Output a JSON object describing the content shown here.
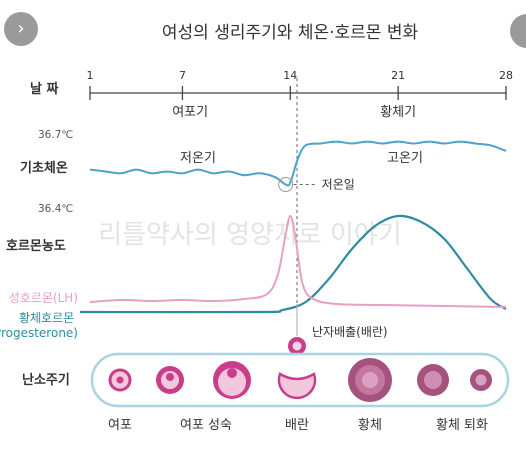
{
  "chart_data": {
    "type": "line",
    "title": "여성의 생리주기와 체온·호르몬 변화",
    "watermark": "리틀약사의 영양지로 이야기",
    "day_label": "날 짜",
    "day_ticks": [
      1,
      7,
      14,
      21,
      28
    ],
    "phases": [
      {
        "name": "여포기",
        "from": 1,
        "to": 14
      },
      {
        "name": "황체기",
        "from": 14,
        "to": 28
      }
    ],
    "temperature": {
      "row_label": "기초체온",
      "axis_max_label": "36.7℃",
      "axis_min_label": "36.4℃",
      "ylim": [
        36.4,
        36.7
      ],
      "low_label": "저온기",
      "high_label": "고온기",
      "low_point_label": "저온일",
      "color": "#4aa3c8",
      "points": [
        [
          1,
          36.52
        ],
        [
          2,
          36.51
        ],
        [
          3,
          36.5
        ],
        [
          4,
          36.52
        ],
        [
          5,
          36.5
        ],
        [
          6,
          36.51
        ],
        [
          7,
          36.5
        ],
        [
          8,
          36.52
        ],
        [
          9,
          36.5
        ],
        [
          10,
          36.51
        ],
        [
          11,
          36.49
        ],
        [
          12,
          36.5
        ],
        [
          13,
          36.48
        ],
        [
          13.7,
          36.44
        ],
        [
          14,
          36.45
        ],
        [
          14.5,
          36.58
        ],
        [
          15,
          36.65
        ],
        [
          16,
          36.66
        ],
        [
          17,
          36.67
        ],
        [
          18,
          36.66
        ],
        [
          19,
          36.67
        ],
        [
          20,
          36.66
        ],
        [
          21,
          36.67
        ],
        [
          22,
          36.66
        ],
        [
          23,
          36.67
        ],
        [
          24,
          36.66
        ],
        [
          25,
          36.67
        ],
        [
          26,
          36.66
        ],
        [
          27,
          36.65
        ],
        [
          28,
          36.62
        ]
      ]
    },
    "hormones": {
      "row_label": "호르몬농도",
      "series": [
        {
          "name": "성호르몬(LH)",
          "color": "#e6a0c4",
          "points": [
            [
              1,
              0.12
            ],
            [
              3,
              0.14
            ],
            [
              5,
              0.13
            ],
            [
              7,
              0.14
            ],
            [
              9,
              0.13
            ],
            [
              11,
              0.15
            ],
            [
              12.5,
              0.2
            ],
            [
              13.2,
              0.4
            ],
            [
              13.7,
              0.8
            ],
            [
              14,
              0.98
            ],
            [
              14.3,
              0.8
            ],
            [
              14.8,
              0.3
            ],
            [
              15.5,
              0.15
            ],
            [
              17,
              0.1
            ],
            [
              20,
              0.09
            ],
            [
              24,
              0.08
            ],
            [
              28,
              0.07
            ]
          ]
        },
        {
          "name": "황체호르몬\n(Progesterone)",
          "color": "#2d8c9e",
          "points": [
            [
              1,
              0.02
            ],
            [
              12,
              0.02
            ],
            [
              13.5,
              0.04
            ],
            [
              15,
              0.12
            ],
            [
              16.5,
              0.35
            ],
            [
              18,
              0.65
            ],
            [
              19.5,
              0.88
            ],
            [
              21,
              0.98
            ],
            [
              22.5,
              0.92
            ],
            [
              24,
              0.75
            ],
            [
              25.5,
              0.45
            ],
            [
              27,
              0.15
            ],
            [
              28,
              0.05
            ]
          ]
        }
      ]
    },
    "ovulation_label": "난자배출(배란)",
    "ovary": {
      "row_label": "난소주기",
      "stages": [
        "여포",
        "여포 성숙",
        "배란",
        "황체",
        "황체 퇴화"
      ],
      "colors": {
        "outer": "#c93d8a",
        "inner": "#f3c8dc",
        "track": "#a9d4e4"
      }
    }
  }
}
